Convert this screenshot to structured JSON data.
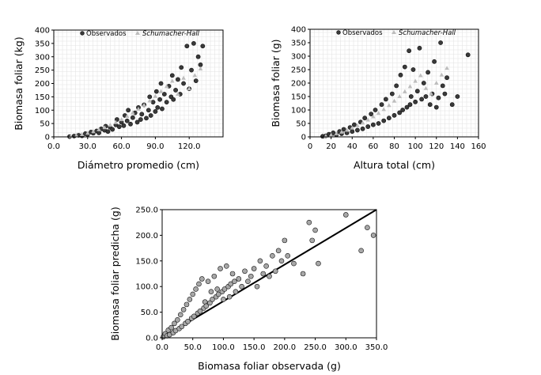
{
  "chart_data": [
    {
      "type": "scatter",
      "xlabel": "Diámetro promedio (cm)",
      "ylabel": "Biomasa foliar (kg)",
      "xlim": [
        0,
        150
      ],
      "ylim": [
        0,
        400
      ],
      "xticks": [
        "0.0",
        "30.0",
        "60.0",
        "90.0",
        "120.0"
      ],
      "yticks": [
        "0",
        "50",
        "100",
        "150",
        "200",
        "250",
        "300",
        "350",
        "400"
      ],
      "grid": true,
      "legend_placement": "top",
      "series": [
        {
          "name": "Observados",
          "color": "#3a3a3a",
          "points": [
            [
              14,
              1
            ],
            [
              18,
              3
            ],
            [
              22,
              6
            ],
            [
              25,
              4
            ],
            [
              28,
              12
            ],
            [
              30,
              9
            ],
            [
              33,
              18
            ],
            [
              35,
              14
            ],
            [
              38,
              22
            ],
            [
              40,
              15
            ],
            [
              42,
              30
            ],
            [
              45,
              25
            ],
            [
              46,
              40
            ],
            [
              48,
              20
            ],
            [
              50,
              36
            ],
            [
              52,
              28
            ],
            [
              55,
              45
            ],
            [
              56,
              65
            ],
            [
              58,
              38
            ],
            [
              60,
              55
            ],
            [
              62,
              42
            ],
            [
              63,
              80
            ],
            [
              65,
              60
            ],
            [
              66,
              100
            ],
            [
              68,
              48
            ],
            [
              70,
              72
            ],
            [
              72,
              90
            ],
            [
              74,
              55
            ],
            [
              75,
              110
            ],
            [
              77,
              65
            ],
            [
              78,
              85
            ],
            [
              80,
              120
            ],
            [
              82,
              70
            ],
            [
              84,
              100
            ],
            [
              85,
              150
            ],
            [
              86,
              80
            ],
            [
              88,
              130
            ],
            [
              90,
              95
            ],
            [
              91,
              170
            ],
            [
              92,
              110
            ],
            [
              94,
              140
            ],
            [
              95,
              200
            ],
            [
              96,
              105
            ],
            [
              98,
              160
            ],
            [
              100,
              130
            ],
            [
              102,
              190
            ],
            [
              104,
              150
            ],
            [
              105,
              230
            ],
            [
              106,
              140
            ],
            [
              108,
              175
            ],
            [
              110,
              215
            ],
            [
              112,
              160
            ],
            [
              113,
              260
            ],
            [
              115,
              200
            ],
            [
              118,
              340
            ],
            [
              120,
              180
            ],
            [
              122,
              250
            ],
            [
              124,
              350
            ],
            [
              126,
              210
            ],
            [
              128,
              300
            ],
            [
              130,
              270
            ],
            [
              132,
              340
            ]
          ]
        },
        {
          "name": "Schumacher-Hall",
          "color": "#bdbdbd",
          "points": [
            [
              15,
              2
            ],
            [
              20,
              5
            ],
            [
              25,
              9
            ],
            [
              30,
              14
            ],
            [
              35,
              20
            ],
            [
              40,
              27
            ],
            [
              45,
              35
            ],
            [
              50,
              44
            ],
            [
              55,
              54
            ],
            [
              60,
              65
            ],
            [
              65,
              77
            ],
            [
              70,
              90
            ],
            [
              75,
              104
            ],
            [
              80,
              119
            ],
            [
              85,
              135
            ],
            [
              90,
              152
            ],
            [
              95,
              170
            ],
            [
              100,
              189
            ],
            [
              105,
              209
            ],
            [
              110,
              160
            ],
            [
              115,
              220
            ],
            [
              120,
              180
            ],
            [
              125,
              230
            ],
            [
              130,
              255
            ]
          ]
        }
      ]
    },
    {
      "type": "scatter",
      "xlabel": "Altura total (cm)",
      "ylabel": "Biomasa foliar (g)",
      "xlim": [
        0,
        160
      ],
      "ylim": [
        0,
        400
      ],
      "xticks": [
        "0",
        "20",
        "40",
        "60",
        "80",
        "100",
        "120",
        "140",
        "160"
      ],
      "yticks": [
        "0",
        "50",
        "100",
        "150",
        "200",
        "250",
        "300",
        "350",
        "400"
      ],
      "grid": true,
      "legend_placement": "top",
      "series": [
        {
          "name": "Observados",
          "color": "#3a3a3a",
          "points": [
            [
              12,
              2
            ],
            [
              15,
              4
            ],
            [
              18,
              10
            ],
            [
              20,
              6
            ],
            [
              22,
              15
            ],
            [
              25,
              8
            ],
            [
              28,
              20
            ],
            [
              30,
              12
            ],
            [
              32,
              28
            ],
            [
              35,
              15
            ],
            [
              38,
              35
            ],
            [
              40,
              20
            ],
            [
              42,
              45
            ],
            [
              45,
              25
            ],
            [
              48,
              55
            ],
            [
              50,
              30
            ],
            [
              52,
              70
            ],
            [
              55,
              38
            ],
            [
              58,
              85
            ],
            [
              60,
              45
            ],
            [
              62,
              100
            ],
            [
              65,
              50
            ],
            [
              68,
              120
            ],
            [
              70,
              60
            ],
            [
              72,
              140
            ],
            [
              75,
              70
            ],
            [
              78,
              160
            ],
            [
              80,
              80
            ],
            [
              82,
              190
            ],
            [
              85,
              90
            ],
            [
              86,
              230
            ],
            [
              88,
              100
            ],
            [
              90,
              260
            ],
            [
              92,
              110
            ],
            [
              94,
              320
            ],
            [
              95,
              120
            ],
            [
              96,
              150
            ],
            [
              98,
              250
            ],
            [
              100,
              130
            ],
            [
              102,
              170
            ],
            [
              104,
              330
            ],
            [
              106,
              140
            ],
            [
              108,
              200
            ],
            [
              110,
              150
            ],
            [
              112,
              240
            ],
            [
              114,
              120
            ],
            [
              116,
              160
            ],
            [
              118,
              280
            ],
            [
              120,
              110
            ],
            [
              122,
              145
            ],
            [
              124,
              350
            ],
            [
              126,
              190
            ],
            [
              128,
              160
            ],
            [
              130,
              220
            ],
            [
              135,
              120
            ],
            [
              140,
              150
            ],
            [
              150,
              305
            ]
          ]
        },
        {
          "name": "Schumacher-Hall",
          "color": "#bdbdbd",
          "points": [
            [
              15,
              3
            ],
            [
              20,
              7
            ],
            [
              25,
              12
            ],
            [
              30,
              18
            ],
            [
              35,
              25
            ],
            [
              40,
              33
            ],
            [
              45,
              42
            ],
            [
              50,
              52
            ],
            [
              55,
              63
            ],
            [
              60,
              75
            ],
            [
              65,
              88
            ],
            [
              70,
              102
            ],
            [
              75,
              117
            ],
            [
              80,
              133
            ],
            [
              85,
              150
            ],
            [
              90,
              168
            ],
            [
              95,
              187
            ],
            [
              100,
              207
            ],
            [
              105,
              228
            ],
            [
              110,
              180
            ],
            [
              115,
              160
            ],
            [
              120,
              200
            ],
            [
              125,
              230
            ],
            [
              130,
              255
            ]
          ]
        }
      ]
    },
    {
      "type": "scatter",
      "xlabel": "Biomasa foliar observada (g)",
      "ylabel": "Biomasa foliar predicha (g)",
      "xlim": [
        0,
        350
      ],
      "ylim": [
        0,
        250
      ],
      "xticks": [
        "0.0",
        "50.0",
        "100.0",
        "150.0",
        "200.0",
        "250.0",
        "300.0",
        "350.0"
      ],
      "yticks": [
        "0.0",
        "50.0",
        "100.0",
        "150.0",
        "200.0",
        "250.0"
      ],
      "grid": false,
      "reference_line": [
        [
          0,
          0
        ],
        [
          350,
          250
        ]
      ],
      "series": [
        {
          "color": "#a8a8a8",
          "points": [
            [
              2,
              2
            ],
            [
              5,
              8
            ],
            [
              8,
              4
            ],
            [
              10,
              15
            ],
            [
              12,
              6
            ],
            [
              15,
              20
            ],
            [
              18,
              10
            ],
            [
              20,
              28
            ],
            [
              22,
              14
            ],
            [
              25,
              35
            ],
            [
              28,
              18
            ],
            [
              30,
              45
            ],
            [
              32,
              22
            ],
            [
              35,
              55
            ],
            [
              38,
              28
            ],
            [
              40,
              65
            ],
            [
              42,
              32
            ],
            [
              45,
              75
            ],
            [
              48,
              38
            ],
            [
              50,
              85
            ],
            [
              52,
              42
            ],
            [
              55,
              95
            ],
            [
              58,
              48
            ],
            [
              60,
              105
            ],
            [
              62,
              52
            ],
            [
              65,
              115
            ],
            [
              68,
              58
            ],
            [
              70,
              70
            ],
            [
              72,
              62
            ],
            [
              75,
              110
            ],
            [
              78,
              68
            ],
            [
              80,
              90
            ],
            [
              82,
              75
            ],
            [
              85,
              120
            ],
            [
              88,
              80
            ],
            [
              90,
              95
            ],
            [
              92,
              85
            ],
            [
              95,
              135
            ],
            [
              98,
              90
            ],
            [
              100,
              75
            ],
            [
              102,
              95
            ],
            [
              105,
              140
            ],
            [
              108,
              100
            ],
            [
              110,
              80
            ],
            [
              112,
              105
            ],
            [
              115,
              125
            ],
            [
              118,
              110
            ],
            [
              120,
              90
            ],
            [
              125,
              115
            ],
            [
              130,
              100
            ],
            [
              135,
              130
            ],
            [
              140,
              110
            ],
            [
              145,
              120
            ],
            [
              150,
              135
            ],
            [
              155,
              100
            ],
            [
              160,
              150
            ],
            [
              165,
              125
            ],
            [
              170,
              140
            ],
            [
              175,
              120
            ],
            [
              180,
              160
            ],
            [
              185,
              130
            ],
            [
              190,
              170
            ],
            [
              195,
              150
            ],
            [
              200,
              190
            ],
            [
              205,
              160
            ],
            [
              215,
              145
            ],
            [
              230,
              125
            ],
            [
              240,
              225
            ],
            [
              245,
              190
            ],
            [
              250,
              210
            ],
            [
              255,
              145
            ],
            [
              300,
              240
            ],
            [
              325,
              170
            ],
            [
              335,
              215
            ],
            [
              345,
              200
            ]
          ]
        }
      ]
    }
  ],
  "legend": {
    "observed": "Observados",
    "model": "Schumacher-Hall"
  }
}
